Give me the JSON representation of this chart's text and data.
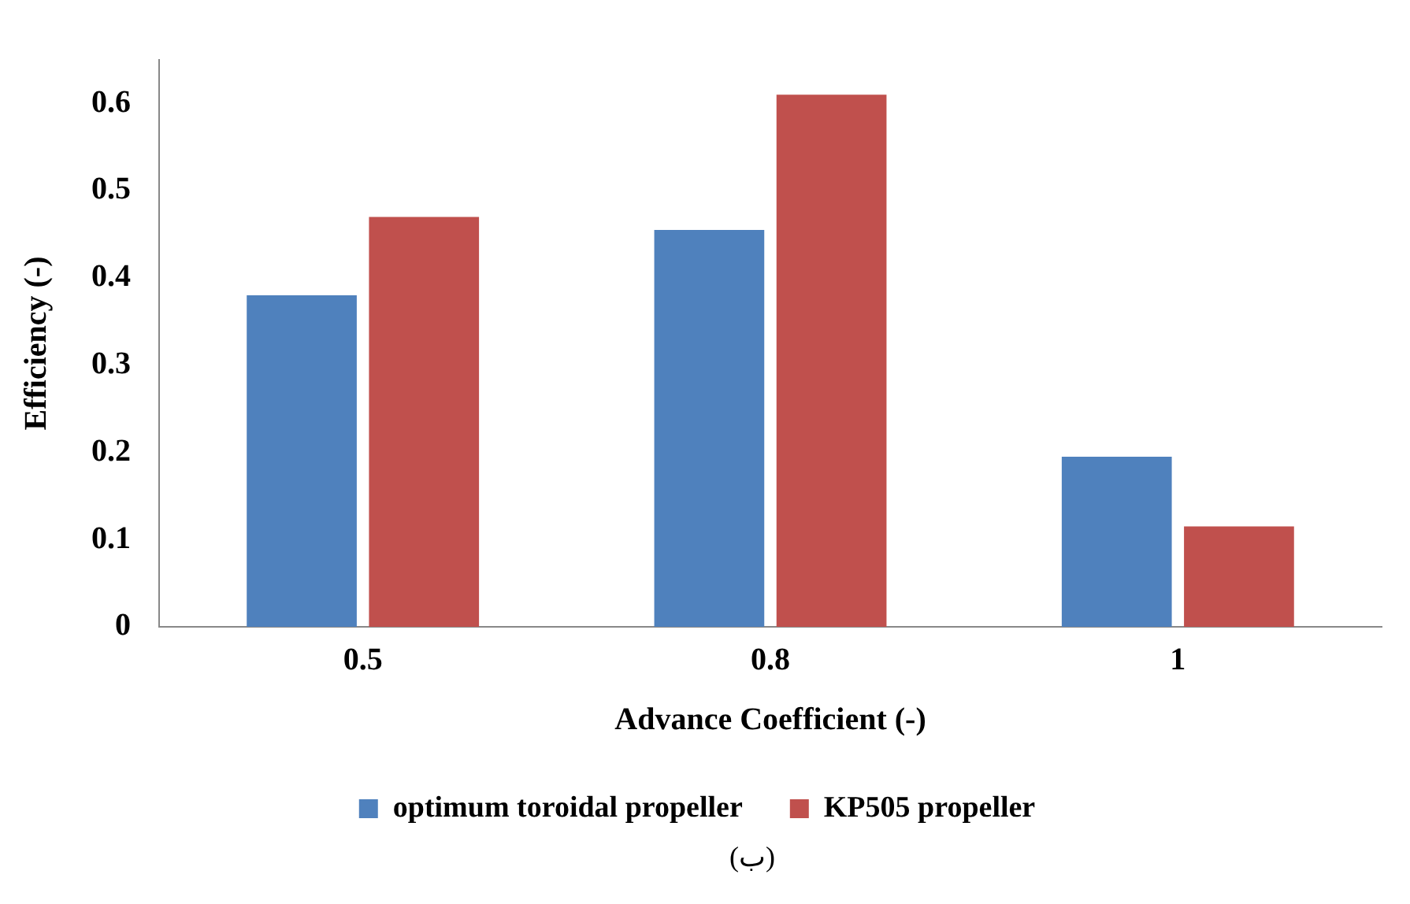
{
  "chart_data": {
    "type": "bar",
    "xlabel": "Advance Coefficient (-)",
    "ylabel": "Efficiency (-)",
    "categories": [
      "0.5",
      "0.8",
      "1"
    ],
    "series": [
      {
        "name": "optimum toroidal propeller",
        "color": "#4f81bd",
        "values": [
          0.38,
          0.455,
          0.195
        ]
      },
      {
        "name": "KP505 propeller",
        "color": "#c0504d",
        "values": [
          0.47,
          0.61,
          0.115
        ]
      }
    ],
    "ylim": [
      0,
      0.65
    ],
    "yticks": [
      0,
      0.1,
      0.2,
      0.3,
      0.4,
      0.5,
      0.6
    ],
    "grid": false,
    "legend": "bottom",
    "annotations": [
      "(ب)"
    ]
  }
}
